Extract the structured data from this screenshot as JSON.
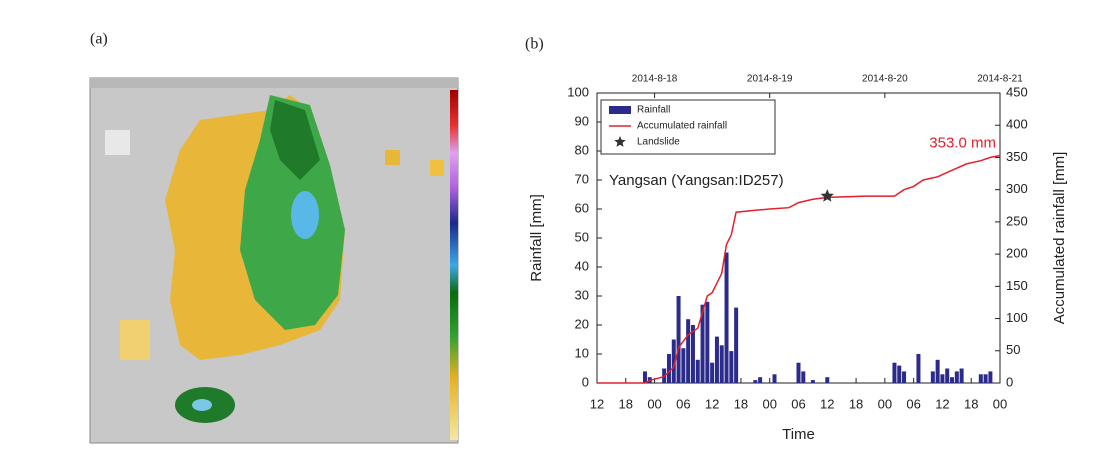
{
  "panel_a": {
    "label": "(a)"
  },
  "panel_b": {
    "label": "(b)"
  },
  "chart_data": {
    "type": "bar",
    "subtitle": "Yangsan (Yangsan:ID257)",
    "x_label": "Time",
    "y_label": "Rainfall [mm]",
    "y2_label": "Accumulated rainfall [mm]",
    "xlim": [
      0,
      84
    ],
    "xticks": [
      {
        "value": 0,
        "label": "12"
      },
      {
        "value": 6,
        "label": "18"
      },
      {
        "value": 12,
        "label": "00"
      },
      {
        "value": 18,
        "label": "06"
      },
      {
        "value": 24,
        "label": "12"
      },
      {
        "value": 30,
        "label": "18"
      },
      {
        "value": 36,
        "label": "00"
      },
      {
        "value": 42,
        "label": "06"
      },
      {
        "value": 48,
        "label": "12"
      },
      {
        "value": 54,
        "label": "18"
      },
      {
        "value": 60,
        "label": "00"
      },
      {
        "value": 66,
        "label": "06"
      },
      {
        "value": 72,
        "label": "12"
      },
      {
        "value": 78,
        "label": "18"
      },
      {
        "value": 84,
        "label": "00"
      }
    ],
    "x2ticks": [
      {
        "value": 12,
        "label": "2014-8-18"
      },
      {
        "value": 36,
        "label": "2014-8-19"
      },
      {
        "value": 60,
        "label": "2014-8-20"
      },
      {
        "value": 84,
        "label": "2014-8-21"
      }
    ],
    "ylim": [
      0,
      100
    ],
    "yticks": [
      0,
      10,
      20,
      30,
      40,
      50,
      60,
      70,
      80,
      90,
      100
    ],
    "y2lim": [
      0,
      450
    ],
    "y2ticks": [
      0,
      50,
      100,
      150,
      200,
      250,
      300,
      350,
      400,
      450
    ],
    "legend": "top-left",
    "series": [
      {
        "name": "Rainfall",
        "type": "bar",
        "color": "#2b2b8c",
        "x": [
          10,
          11,
          14,
          15,
          16,
          17,
          18,
          19,
          20,
          21,
          22,
          23,
          24,
          25,
          26,
          27,
          28,
          29,
          33,
          34,
          37,
          42,
          43,
          45,
          48,
          62,
          63,
          64,
          67,
          70,
          71,
          72,
          73,
          74,
          75,
          76,
          80,
          81,
          82
        ],
        "values": [
          4,
          2,
          5,
          10,
          15,
          30,
          12,
          22,
          20,
          8,
          27,
          28,
          7,
          16,
          13,
          45,
          11,
          26,
          1,
          2,
          3,
          7,
          4,
          1,
          2,
          7,
          6,
          4,
          10,
          4,
          8,
          3,
          5,
          2,
          4,
          5,
          3,
          3,
          4
        ]
      },
      {
        "name": "Accumulated rainfall",
        "type": "line",
        "axis": "y2",
        "color": "#e3202b",
        "x": [
          0,
          10,
          11,
          14,
          16,
          17,
          19,
          21,
          23,
          24,
          26,
          27,
          28,
          29,
          33,
          36,
          40,
          42,
          45,
          48,
          56,
          62,
          64,
          66,
          68,
          71,
          74,
          77,
          80,
          82,
          84
        ],
        "values": [
          0,
          0,
          4,
          10,
          25,
          55,
          75,
          85,
          135,
          140,
          170,
          215,
          230,
          265,
          268,
          270,
          272,
          280,
          285,
          288,
          290,
          290,
          300,
          305,
          315,
          320,
          330,
          340,
          345,
          350,
          353
        ]
      },
      {
        "name": "Landslide",
        "type": "scatter",
        "axis": "y2",
        "color": "#333333",
        "x": [
          48
        ],
        "values": [
          290
        ]
      }
    ],
    "annotations": [
      {
        "text": "353.0 mm",
        "x": 84,
        "y": 353,
        "axis": "y2",
        "color": "#e3202b"
      }
    ]
  }
}
